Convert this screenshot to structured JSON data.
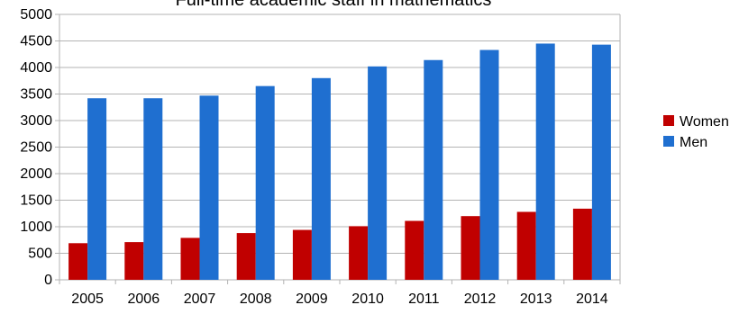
{
  "chart_data": {
    "type": "bar",
    "title": "Full-time academic staff in mathematics",
    "xlabel": "",
    "ylabel": "",
    "categories": [
      "2005",
      "2006",
      "2007",
      "2008",
      "2009",
      "2010",
      "2011",
      "2012",
      "2013",
      "2014"
    ],
    "series": [
      {
        "name": "Women",
        "color": "#c00000",
        "values": [
          690,
          710,
          790,
          880,
          940,
          1010,
          1110,
          1200,
          1280,
          1340
        ]
      },
      {
        "name": "Men",
        "color": "#1f6fd0",
        "values": [
          3420,
          3420,
          3470,
          3650,
          3800,
          4020,
          4140,
          4330,
          4450,
          4430
        ]
      }
    ],
    "ylim": [
      0,
      5000
    ],
    "yticks": [
      0,
      500,
      1000,
      1500,
      2000,
      2500,
      3000,
      3500,
      4000,
      4500,
      5000
    ],
    "grid": true,
    "legend_position": "right"
  }
}
